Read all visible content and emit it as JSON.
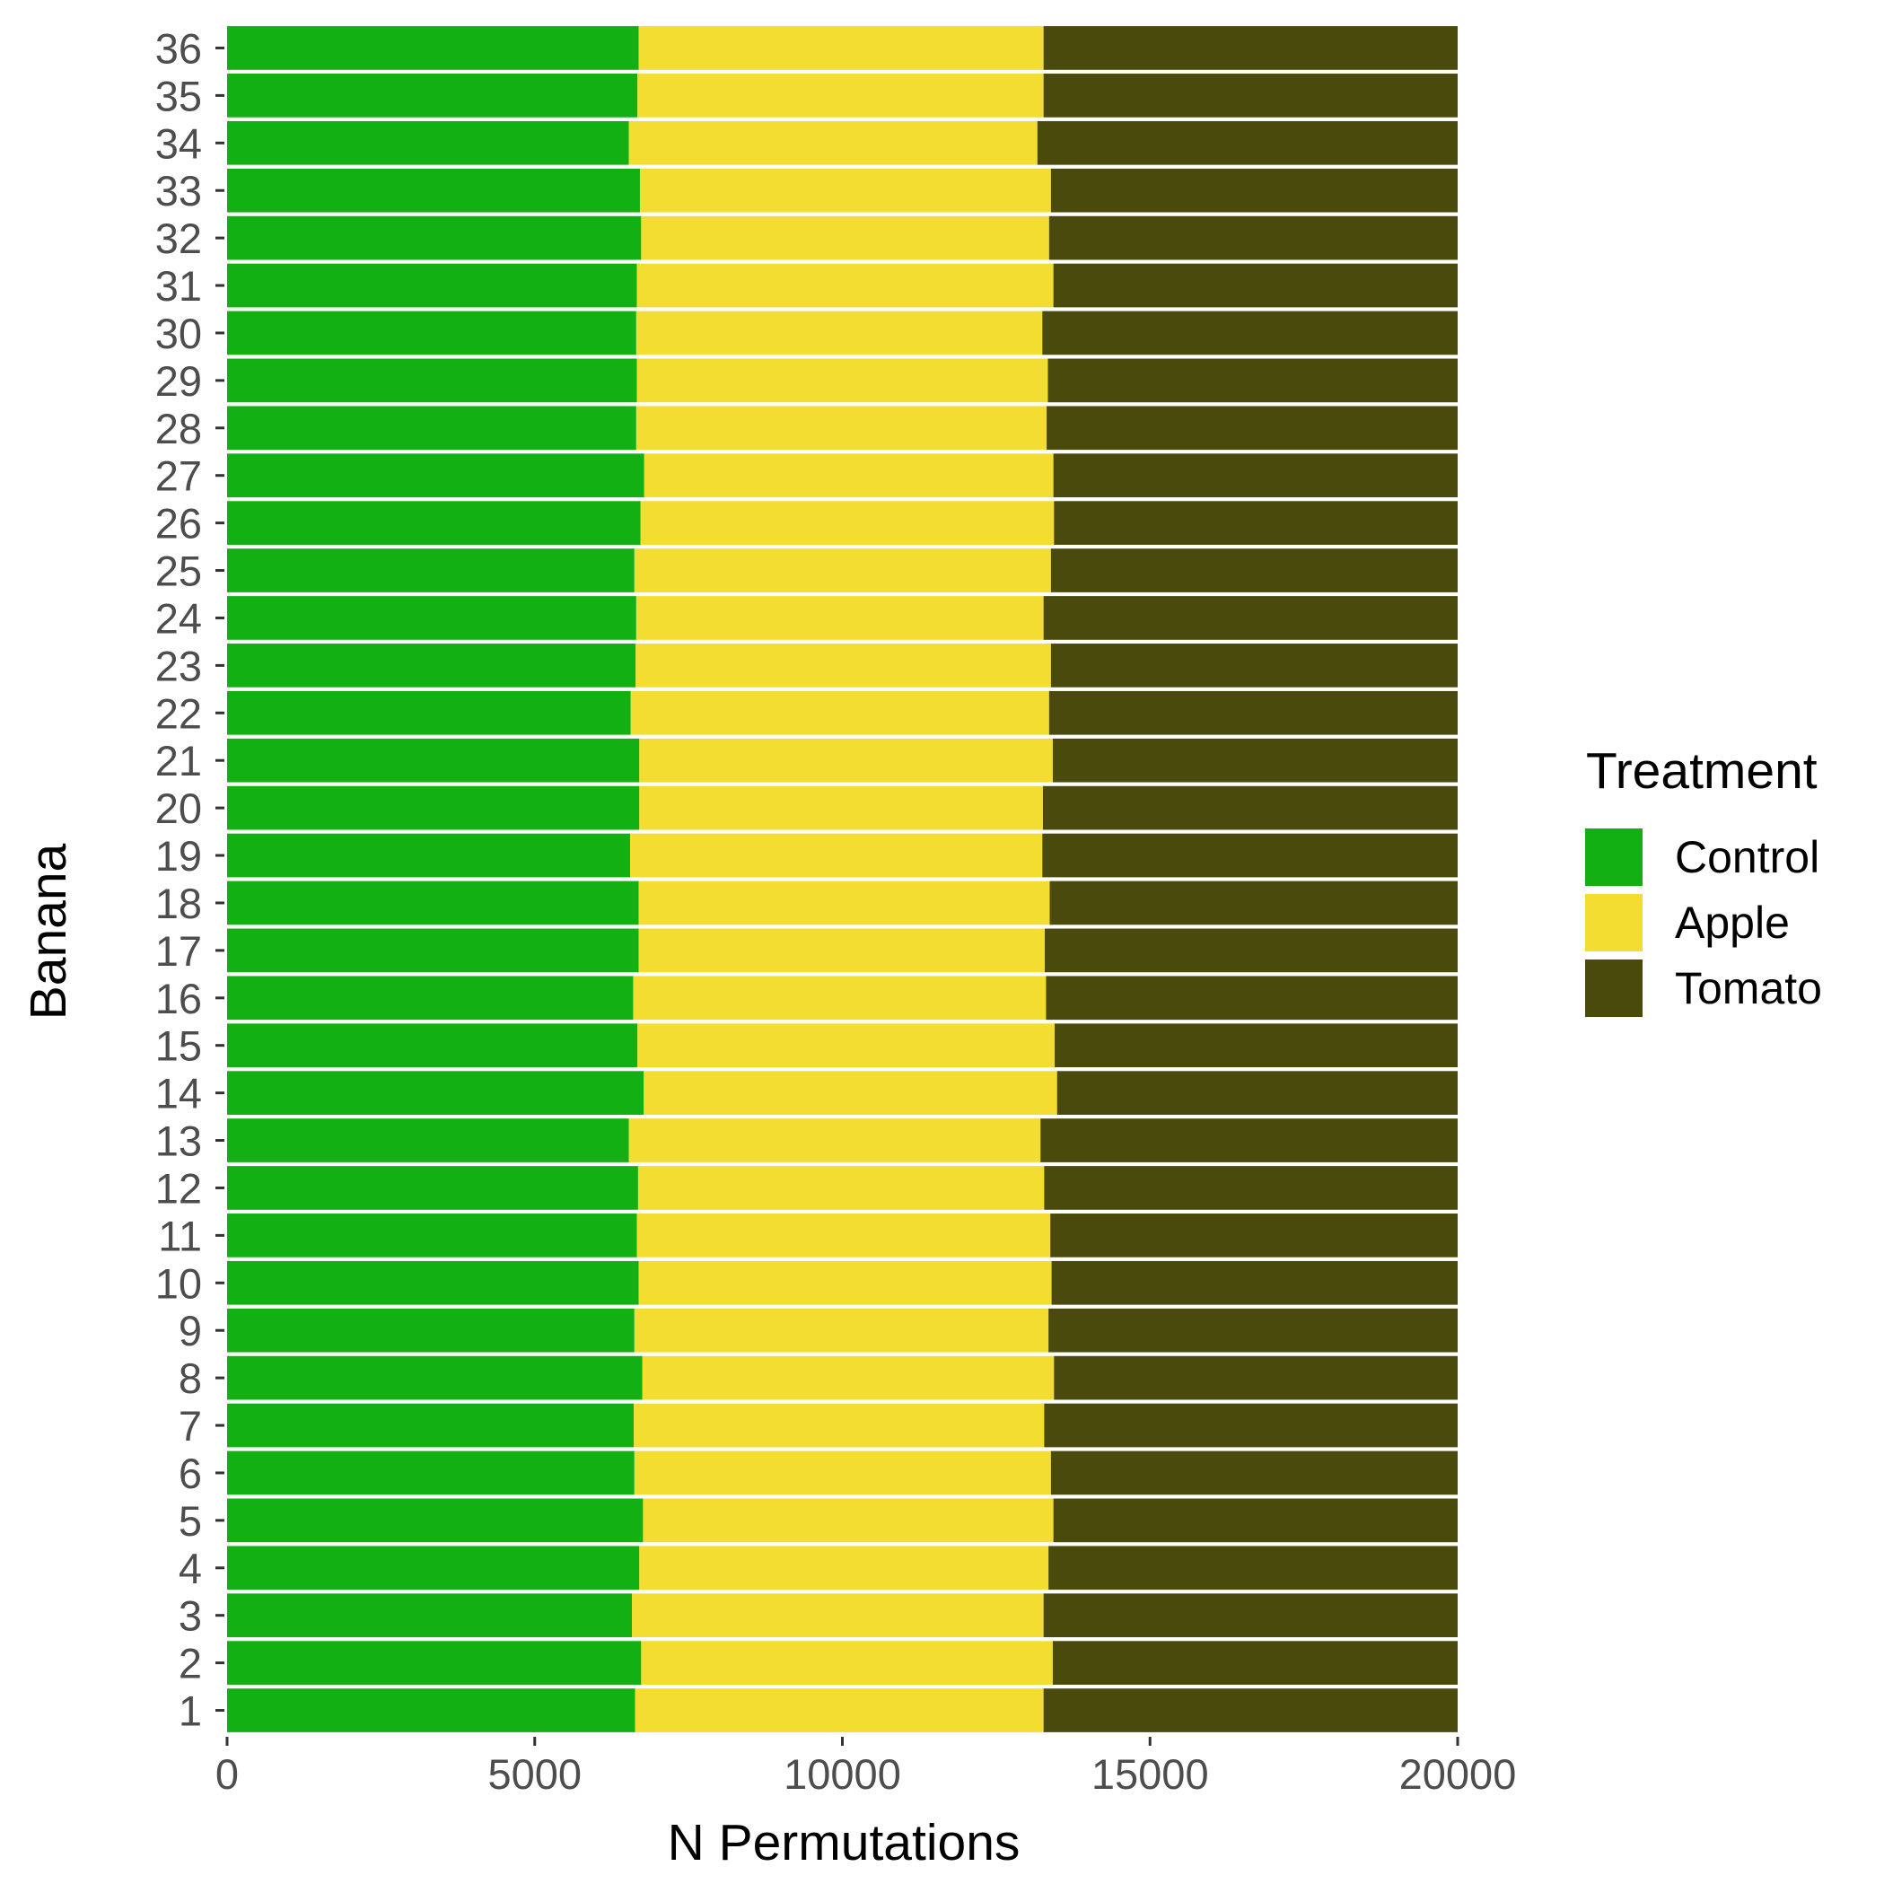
{
  "chart_data": {
    "type": "bar",
    "orientation": "horizontal",
    "stacked": true,
    "xlabel": "N Permutations",
    "ylabel": "Banana",
    "xlim": [
      0,
      20000
    ],
    "x_ticks": [
      0,
      5000,
      10000,
      15000,
      20000
    ],
    "grid": false,
    "legend_position": "right",
    "legend_title": "Treatment",
    "categories": [
      "1",
      "2",
      "3",
      "4",
      "5",
      "6",
      "7",
      "8",
      "9",
      "10",
      "11",
      "12",
      "13",
      "14",
      "15",
      "16",
      "17",
      "18",
      "19",
      "20",
      "21",
      "22",
      "23",
      "24",
      "25",
      "26",
      "27",
      "28",
      "29",
      "30",
      "31",
      "32",
      "33",
      "34",
      "35",
      "36"
    ],
    "series": [
      {
        "name": "Control",
        "color": "#12b012",
        "values": [
          6630,
          6730,
          6580,
          6700,
          6760,
          6620,
          6610,
          6750,
          6620,
          6690,
          6660,
          6680,
          6530,
          6770,
          6670,
          6600,
          6690,
          6690,
          6550,
          6700,
          6700,
          6560,
          6640,
          6650,
          6620,
          6720,
          6780,
          6650,
          6660,
          6650,
          6660,
          6730,
          6710,
          6530,
          6670,
          6690
        ]
      },
      {
        "name": "Apple",
        "color": "#f2dd30",
        "values": [
          6640,
          6690,
          6690,
          6650,
          6670,
          6770,
          6670,
          6690,
          6730,
          6710,
          6720,
          6600,
          6690,
          6720,
          6780,
          6710,
          6600,
          6680,
          6700,
          6560,
          6720,
          6800,
          6750,
          6620,
          6770,
          6720,
          6650,
          6670,
          6680,
          6600,
          6770,
          6630,
          6680,
          6640,
          6600,
          6580
        ]
      },
      {
        "name": "Tomato",
        "color": "#4a4a0c",
        "values": [
          6730,
          6580,
          6730,
          6650,
          6570,
          6610,
          6720,
          6560,
          6650,
          6600,
          6620,
          6720,
          6780,
          6510,
          6550,
          6690,
          6710,
          6630,
          6750,
          6740,
          6580,
          6640,
          6610,
          6730,
          6610,
          6560,
          6570,
          6680,
          6660,
          6750,
          6570,
          6640,
          6610,
          6830,
          6730,
          6730
        ]
      }
    ]
  }
}
